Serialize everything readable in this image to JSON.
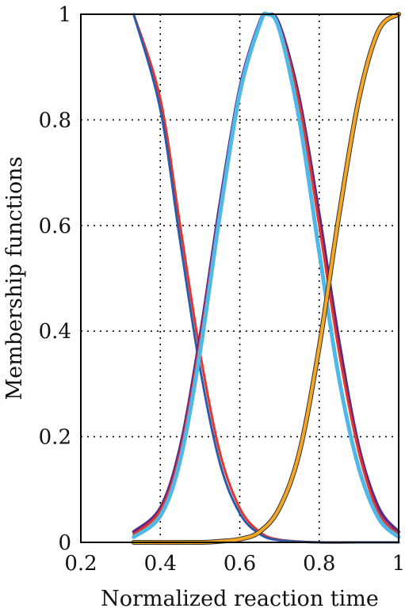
{
  "chart_data": {
    "type": "line",
    "title": "",
    "xlabel": "Normalized reaction time",
    "ylabel": "Membership functions",
    "xlim": [
      0.2,
      1.0
    ],
    "ylim": [
      0,
      1
    ],
    "xticks": [
      0.2,
      0.4,
      0.6,
      0.8,
      1.0
    ],
    "xtick_labels": [
      "0.2",
      "0.4",
      "0.6",
      "0.8",
      "1"
    ],
    "yticks": [
      0,
      0.2,
      0.4,
      0.6,
      0.8,
      1.0
    ],
    "ytick_labels": [
      "0",
      "0.2",
      "0.4",
      "0.6",
      "0.8",
      "1"
    ],
    "grid": true,
    "legend": "none",
    "series": [
      {
        "color": "#e8342a",
        "x": [
          0.333,
          0.4,
          0.45,
          0.5,
          0.55,
          0.6,
          0.65,
          0.7,
          0.8,
          0.9,
          1.0
        ],
        "y": [
          1.0,
          0.84,
          0.6,
          0.36,
          0.17,
          0.065,
          0.02,
          0.005,
          0.0,
          0.0,
          0.0
        ]
      },
      {
        "color": "#2a5caa",
        "x": [
          0.333,
          0.4,
          0.45,
          0.5,
          0.55,
          0.6,
          0.65,
          0.7,
          0.8,
          0.9,
          1.0
        ],
        "y": [
          1.0,
          0.82,
          0.57,
          0.33,
          0.15,
          0.055,
          0.016,
          0.004,
          0.0,
          0.0,
          0.0
        ]
      },
      {
        "color": "#5b2a86",
        "x": [
          0.333,
          0.4,
          0.45,
          0.5,
          0.55,
          0.6,
          0.65,
          0.67,
          0.7,
          0.75,
          0.8,
          0.85,
          0.9,
          0.95,
          1.0
        ],
        "y": [
          0.02,
          0.065,
          0.18,
          0.39,
          0.64,
          0.86,
          0.985,
          1.0,
          0.98,
          0.84,
          0.62,
          0.38,
          0.18,
          0.065,
          0.02
        ]
      },
      {
        "color": "#e8342a",
        "x": [
          0.333,
          0.4,
          0.45,
          0.5,
          0.55,
          0.6,
          0.65,
          0.67,
          0.7,
          0.75,
          0.8,
          0.85,
          0.9,
          0.95,
          1.0
        ],
        "y": [
          0.015,
          0.06,
          0.17,
          0.38,
          0.63,
          0.85,
          0.98,
          1.0,
          0.975,
          0.83,
          0.6,
          0.36,
          0.17,
          0.055,
          0.015
        ]
      },
      {
        "color": "#4fb8e6",
        "x": [
          0.333,
          0.4,
          0.45,
          0.5,
          0.55,
          0.6,
          0.65,
          0.67,
          0.7,
          0.75,
          0.8,
          0.85,
          0.9,
          0.95,
          1.0
        ],
        "y": [
          0.01,
          0.05,
          0.155,
          0.36,
          0.62,
          0.85,
          0.98,
          1.0,
          0.97,
          0.8,
          0.55,
          0.31,
          0.14,
          0.045,
          0.01
        ]
      },
      {
        "color": "#333333",
        "x": [
          0.333,
          0.5,
          0.55,
          0.6,
          0.65,
          0.7,
          0.75,
          0.8,
          0.85,
          0.9,
          0.95,
          1.0
        ],
        "y": [
          0.0,
          0.0,
          0.002,
          0.006,
          0.02,
          0.065,
          0.17,
          0.37,
          0.62,
          0.84,
          0.97,
          1.0
        ]
      },
      {
        "color": "#f5a623",
        "x": [
          0.333,
          0.5,
          0.55,
          0.6,
          0.65,
          0.7,
          0.75,
          0.8,
          0.85,
          0.9,
          0.95,
          1.0
        ],
        "y": [
          0.0,
          0.0,
          0.002,
          0.006,
          0.02,
          0.065,
          0.17,
          0.37,
          0.62,
          0.84,
          0.97,
          1.0
        ]
      }
    ]
  }
}
